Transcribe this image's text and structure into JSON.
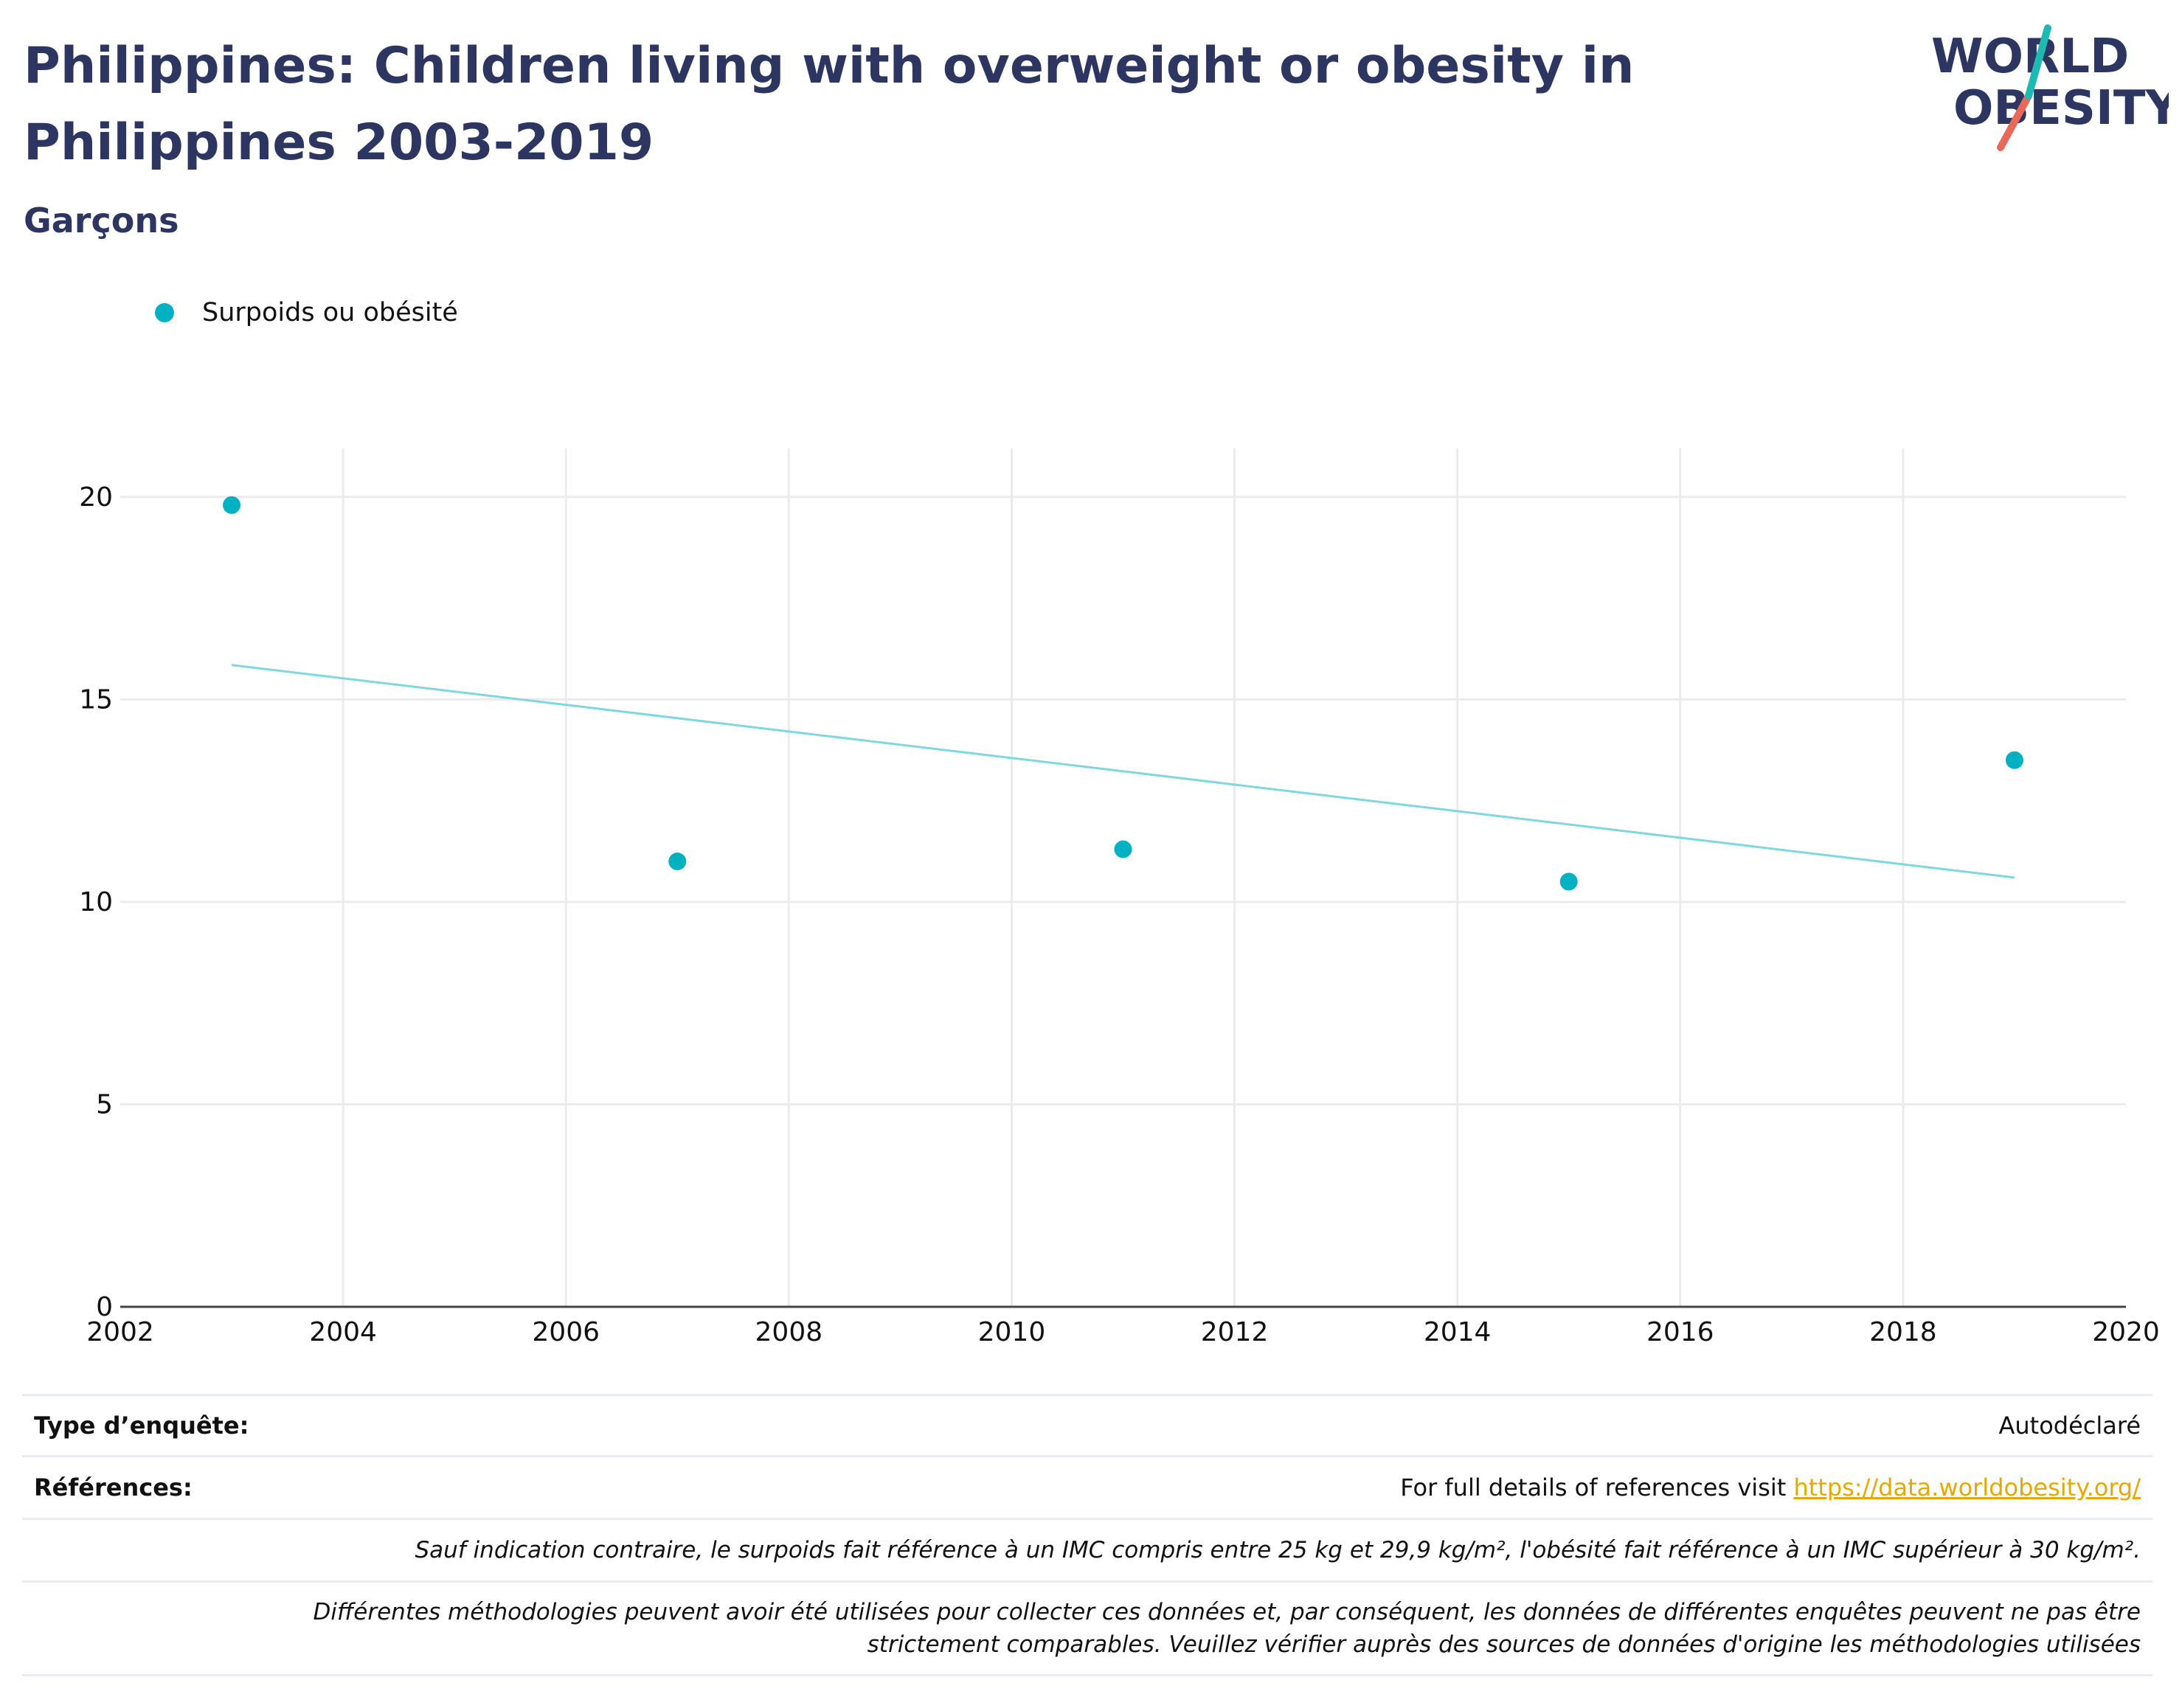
{
  "title": "Philippines: Children living with overweight or obesity in Philippines 2003-2019",
  "subtitle": "Garçons",
  "logo": {
    "line1": "WORLD",
    "line2": "OBESITY"
  },
  "colors": {
    "title": "#2c3661",
    "series": "#00b1c1",
    "trend": "#7fd8df",
    "grid": "#ebebeb",
    "link": "#e6a800"
  },
  "chart_data": {
    "type": "scatter",
    "series": [
      {
        "name": "Surpoids ou obésité",
        "x": [
          2003,
          2007,
          2011,
          2015,
          2019
        ],
        "y": [
          19.8,
          11.0,
          11.3,
          10.5,
          13.5
        ]
      }
    ],
    "trendline": {
      "x": [
        2003,
        2019
      ],
      "y": [
        15.85,
        10.6
      ]
    },
    "xlim": [
      2002,
      2020
    ],
    "ylim": [
      0,
      21.2
    ],
    "xticks": [
      "2002",
      "2004",
      "2006",
      "2008",
      "2010",
      "2012",
      "2014",
      "2016",
      "2018",
      "2020"
    ],
    "yticks": [
      "0",
      "5",
      "10",
      "15",
      "20"
    ],
    "grid": true,
    "legend_position": "top-left"
  },
  "footer": {
    "survey_type_label": "Type d’enquête:",
    "survey_type_value": "Autodéclaré",
    "references_label": "Références:",
    "references_text": "For full details of references visit ",
    "references_link": "https://data.worldobesity.org/",
    "note1": "Sauf indication contraire, le surpoids fait référence à un IMC compris entre 25 kg et 29,9 kg/m², l'obésité fait référence à un IMC supérieur à 30 kg/m².",
    "note2": "Différentes méthodologies peuvent avoir été utilisées pour collecter ces données et, par conséquent, les données de différentes enquêtes peuvent ne pas être strictement comparables. Veuillez vérifier auprès des sources de données d'origine les méthodologies utilisées"
  }
}
